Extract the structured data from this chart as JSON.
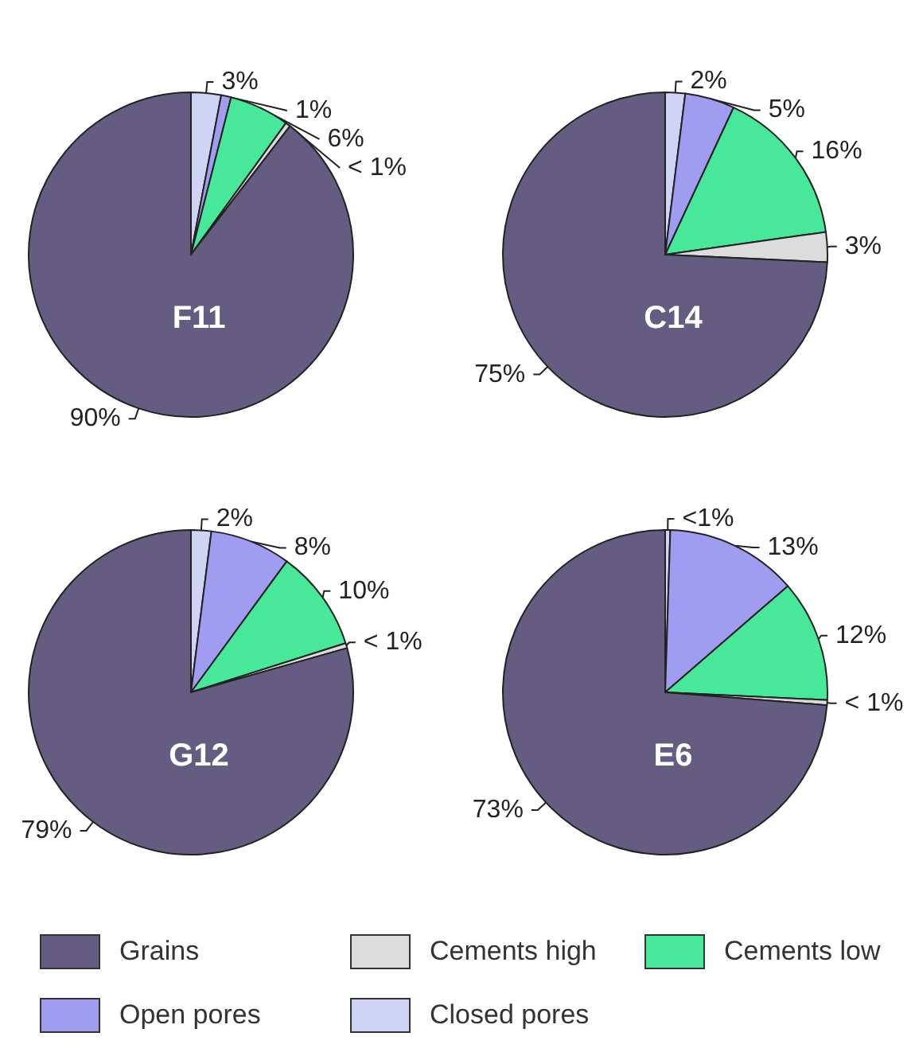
{
  "chart_data": [
    {
      "type": "pie",
      "title": "F11",
      "categories": [
        "Closed pores",
        "Open pores",
        "Cements low",
        "Cements high",
        "Grains"
      ],
      "colors": [
        "#d0d4f4",
        "#a09cf0",
        "#47e89a",
        "#dcdcdc",
        "#655c82"
      ],
      "values": [
        3,
        1,
        6,
        0.5,
        90
      ],
      "value_labels": [
        "3%",
        "1%",
        "6%",
        "< 1%",
        "90%"
      ],
      "legend": "bottom"
    },
    {
      "type": "pie",
      "title": "C14",
      "categories": [
        null,
        null,
        null,
        null,
        null
      ],
      "colors": [
        "#d0d4f4",
        "#a09cf0",
        "#47e89a",
        "#dcdcdc",
        "#655c82"
      ],
      "values": [
        2,
        5,
        16,
        3,
        75
      ],
      "value_labels": [
        "2%",
        "5%",
        "16%",
        "3%",
        "75%"
      ]
    },
    {
      "type": "pie",
      "title": "G12",
      "categories": [
        null,
        null,
        null,
        null,
        null
      ],
      "colors": [
        "#d0d4f4",
        "#a09cf0",
        "#47e89a",
        "#dcdcdc",
        "#655c82"
      ],
      "values": [
        2,
        8,
        10,
        0.5,
        79
      ],
      "value_labels": [
        "2%",
        "8%",
        "10%",
        "< 1%",
        "79%"
      ]
    },
    {
      "type": "pie",
      "title": "E6",
      "categories": [
        null,
        null,
        null,
        null,
        null
      ],
      "colors": [
        "#d0d4f4",
        "#a09cf0",
        "#47e89a",
        "#dcdcdc",
        "#655c82"
      ],
      "values": [
        0.5,
        13,
        12,
        0.5,
        73
      ],
      "value_labels": [
        "<1%",
        "13%",
        "12%",
        "< 1%",
        "73%"
      ]
    }
  ]
}
